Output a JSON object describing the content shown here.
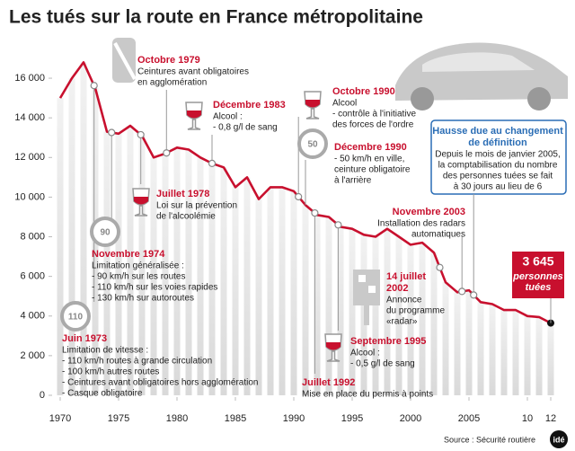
{
  "chart_data": {
    "type": "line",
    "title": "Les tués sur la route en France métropolitaine",
    "x": [
      1970,
      1971,
      1972,
      1973,
      1974,
      1975,
      1976,
      1977,
      1978,
      1979,
      1980,
      1981,
      1982,
      1983,
      1984,
      1985,
      1986,
      1987,
      1988,
      1989,
      1990,
      1991,
      1992,
      1993,
      1994,
      1995,
      1996,
      1997,
      1998,
      1999,
      2000,
      2001,
      2002,
      2003,
      2004,
      2005,
      2006,
      2007,
      2008,
      2009,
      2010,
      2011,
      2012
    ],
    "series": [
      {
        "name": "Tués",
        "color": "#c8102e",
        "values": [
          15000,
          16000,
          16800,
          15500,
          13300,
          13200,
          13600,
          13100,
          12000,
          12200,
          12500,
          12400,
          12000,
          11700,
          11500,
          10500,
          11000,
          9900,
          10500,
          10500,
          10300,
          9600,
          9100,
          9000,
          8500,
          8400,
          8100,
          8000,
          8400,
          8000,
          7600,
          7700,
          7200,
          5700,
          5200,
          5300,
          4700,
          4600,
          4300,
          4300,
          4000,
          3950,
          3645
        ],
        "value_labels": [
          null,
          null,
          null,
          null,
          null,
          null,
          null,
          null,
          null,
          null,
          null,
          null,
          null,
          null,
          null,
          null,
          null,
          null,
          null,
          null,
          null,
          null,
          null,
          null,
          null,
          null,
          null,
          null,
          null,
          null,
          null,
          null,
          null,
          null,
          null,
          null,
          null,
          null,
          null,
          null,
          null,
          null,
          "3 645"
        ]
      }
    ],
    "end_note": [
      "personnes",
      "tuées"
    ],
    "xlim": [
      1970,
      2012
    ],
    "xticks": [
      1970,
      1975,
      1980,
      1985,
      1990,
      1995,
      2000,
      2005,
      {
        "value": 2010,
        "label": "10"
      },
      {
        "value": 2012,
        "label": "12"
      }
    ],
    "ylim": [
      0,
      17000
    ],
    "yticks": [
      0,
      {
        "value": 2000,
        "label": "2 000"
      },
      {
        "value": 4000,
        "label": "4 000"
      },
      {
        "value": 6000,
        "label": "6 000"
      },
      {
        "value": 8000,
        "label": "8 000"
      },
      {
        "value": 10000,
        "label": "10 000"
      },
      {
        "value": 12000,
        "label": "12 000"
      },
      {
        "value": 14000,
        "label": "14 000"
      },
      {
        "value": 16000,
        "label": "16 000"
      }
    ],
    "annotations": [
      {
        "title": [
          "Juin 1973"
        ],
        "text": [
          "Limitation de vitesse :",
          "- 110 km/h routes à grande circulation",
          "- 100 km/h autres routes",
          "- Ceintures avant obligatoires hors agglomération",
          "- Casque obligatoire"
        ],
        "sign": "110"
      },
      {
        "title": [
          "Novembre 1974"
        ],
        "text": [
          "Limitation généralisée :",
          "- 90 km/h sur les routes",
          "- 110 km/h sur les voies rapides",
          "- 130 km/h sur autoroutes"
        ],
        "sign": "90"
      },
      {
        "title": [
          "Juillet 1978"
        ],
        "text": [
          "Loi sur la prévention",
          "de l'alcoolémie"
        ]
      },
      {
        "title": [
          "Octobre 1979"
        ],
        "text": [
          "Ceintures avant obligatoires",
          "en agglomération"
        ]
      },
      {
        "title": [
          "Décembre 1983"
        ],
        "text": [
          "Alcool :",
          "- 0,8 g/l de sang"
        ]
      },
      {
        "title": [
          "Octobre 1990"
        ],
        "text": [
          "Alcool",
          "- contrôle à l'initiative",
          "des forces de l'ordre"
        ]
      },
      {
        "title": [
          "Décembre 1990"
        ],
        "text": [
          "- 50 km/h en ville,",
          "ceinture obligatoire",
          "à l'arrière"
        ],
        "sign": "50"
      },
      {
        "title": [
          "Juillet 1992"
        ],
        "text": [
          "Mise en place du permis à points"
        ]
      },
      {
        "title": [
          "Septembre 1995"
        ],
        "text": [
          "Alcool :",
          "- 0,5 g/l de sang"
        ]
      },
      {
        "title": [
          "Novembre 2003"
        ],
        "text": [
          "Installation des radars",
          "automatiques"
        ]
      },
      {
        "title": [
          "14 juillet",
          "2002"
        ],
        "text": [
          "Annonce",
          "du programme",
          "«radar»"
        ]
      },
      {
        "title": [
          "Hausse due au changement",
          "de définition"
        ],
        "text": [
          "Depuis le mois de janvier 2005,",
          "la comptabilisation du nombre",
          "des personnes tuées se fait",
          "à 30 jours au lieu de 6"
        ]
      }
    ],
    "source": "Source : Sécurité routière",
    "logo": "idé"
  }
}
